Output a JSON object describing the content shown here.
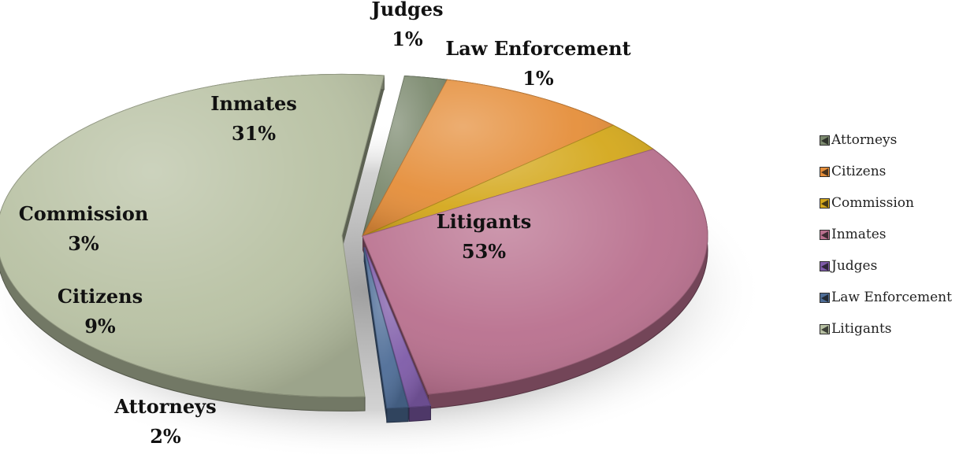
{
  "chart_data": {
    "type": "pie",
    "title": "",
    "legend_position": "right",
    "slices": [
      {
        "name": "Attorneys",
        "value": 2,
        "label": "2%",
        "color": "#7c8a6f"
      },
      {
        "name": "Citizens",
        "value": 9,
        "label": "9%",
        "color": "#e58e3a"
      },
      {
        "name": "Commission",
        "value": 3,
        "label": "3%",
        "color": "#d4a81c"
      },
      {
        "name": "Inmates",
        "value": 31,
        "label": "31%",
        "color": "#b9708e"
      },
      {
        "name": "Judges",
        "value": 1,
        "label": "1%",
        "color": "#7e5ba8"
      },
      {
        "name": "Law Enforcement",
        "value": 1,
        "label": "1%",
        "color": "#4e6d97"
      },
      {
        "name": "Litigants",
        "value": 53,
        "label": "53%",
        "color": "#b8c1a3"
      }
    ]
  }
}
